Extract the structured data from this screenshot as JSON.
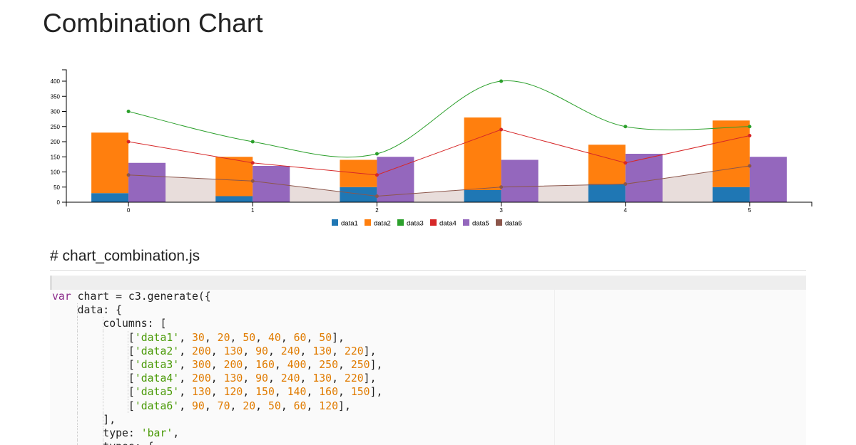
{
  "page": {
    "title": "Combination Chart",
    "source_heading": "# chart_combination.js"
  },
  "colors": {
    "data1": "#1f77b4",
    "data2": "#ff7f0e",
    "data3": "#2ca02c",
    "data4": "#d62728",
    "data5": "#9467bd",
    "data6": "#8c564b"
  },
  "chart_data": {
    "type": "bar",
    "x": [
      0,
      1,
      2,
      3,
      4,
      5
    ],
    "ylim": [
      0,
      420
    ],
    "yticks": [
      0,
      50,
      100,
      150,
      200,
      250,
      300,
      350,
      400
    ],
    "grid": false,
    "legend_position": "bottom-center",
    "series": [
      {
        "name": "data1",
        "values": [
          30,
          20,
          50,
          40,
          60,
          50
        ],
        "render": "bar",
        "stack": "a",
        "color": "#1f77b4"
      },
      {
        "name": "data2",
        "values": [
          200,
          130,
          90,
          240,
          130,
          220
        ],
        "render": "bar",
        "stack": "a",
        "color": "#ff7f0e"
      },
      {
        "name": "data3",
        "values": [
          300,
          200,
          160,
          400,
          250,
          250
        ],
        "render": "spline",
        "color": "#2ca02c"
      },
      {
        "name": "data4",
        "values": [
          200,
          130,
          90,
          240,
          130,
          220
        ],
        "render": "line",
        "color": "#d62728"
      },
      {
        "name": "data5",
        "values": [
          130,
          120,
          150,
          140,
          160,
          150
        ],
        "render": "bar",
        "color": "#9467bd"
      },
      {
        "name": "data6",
        "values": [
          90,
          70,
          20,
          50,
          60,
          120
        ],
        "render": "area",
        "color": "#8c564b"
      }
    ]
  },
  "code": {
    "lines": [
      {
        "indent": 0,
        "tokens": [
          [
            "kw",
            "var"
          ],
          [
            "plain",
            " chart = c3.generate({"
          ]
        ]
      },
      {
        "indent": 1,
        "tokens": [
          [
            "plain",
            "data: {"
          ]
        ]
      },
      {
        "indent": 2,
        "tokens": [
          [
            "plain",
            "columns: ["
          ]
        ]
      },
      {
        "indent": 3,
        "tokens": [
          [
            "plain",
            "["
          ],
          [
            "str",
            "'data1'"
          ],
          [
            "plain",
            ", "
          ],
          [
            "num",
            "30"
          ],
          [
            "plain",
            ", "
          ],
          [
            "num",
            "20"
          ],
          [
            "plain",
            ", "
          ],
          [
            "num",
            "50"
          ],
          [
            "plain",
            ", "
          ],
          [
            "num",
            "40"
          ],
          [
            "plain",
            ", "
          ],
          [
            "num",
            "60"
          ],
          [
            "plain",
            ", "
          ],
          [
            "num",
            "50"
          ],
          [
            "plain",
            "],"
          ]
        ]
      },
      {
        "indent": 3,
        "tokens": [
          [
            "plain",
            "["
          ],
          [
            "str",
            "'data2'"
          ],
          [
            "plain",
            ", "
          ],
          [
            "num",
            "200"
          ],
          [
            "plain",
            ", "
          ],
          [
            "num",
            "130"
          ],
          [
            "plain",
            ", "
          ],
          [
            "num",
            "90"
          ],
          [
            "plain",
            ", "
          ],
          [
            "num",
            "240"
          ],
          [
            "plain",
            ", "
          ],
          [
            "num",
            "130"
          ],
          [
            "plain",
            ", "
          ],
          [
            "num",
            "220"
          ],
          [
            "plain",
            "],"
          ]
        ]
      },
      {
        "indent": 3,
        "tokens": [
          [
            "plain",
            "["
          ],
          [
            "str",
            "'data3'"
          ],
          [
            "plain",
            ", "
          ],
          [
            "num",
            "300"
          ],
          [
            "plain",
            ", "
          ],
          [
            "num",
            "200"
          ],
          [
            "plain",
            ", "
          ],
          [
            "num",
            "160"
          ],
          [
            "plain",
            ", "
          ],
          [
            "num",
            "400"
          ],
          [
            "plain",
            ", "
          ],
          [
            "num",
            "250"
          ],
          [
            "plain",
            ", "
          ],
          [
            "num",
            "250"
          ],
          [
            "plain",
            "],"
          ]
        ]
      },
      {
        "indent": 3,
        "tokens": [
          [
            "plain",
            "["
          ],
          [
            "str",
            "'data4'"
          ],
          [
            "plain",
            ", "
          ],
          [
            "num",
            "200"
          ],
          [
            "plain",
            ", "
          ],
          [
            "num",
            "130"
          ],
          [
            "plain",
            ", "
          ],
          [
            "num",
            "90"
          ],
          [
            "plain",
            ", "
          ],
          [
            "num",
            "240"
          ],
          [
            "plain",
            ", "
          ],
          [
            "num",
            "130"
          ],
          [
            "plain",
            ", "
          ],
          [
            "num",
            "220"
          ],
          [
            "plain",
            "],"
          ]
        ]
      },
      {
        "indent": 3,
        "tokens": [
          [
            "plain",
            "["
          ],
          [
            "str",
            "'data5'"
          ],
          [
            "plain",
            ", "
          ],
          [
            "num",
            "130"
          ],
          [
            "plain",
            ", "
          ],
          [
            "num",
            "120"
          ],
          [
            "plain",
            ", "
          ],
          [
            "num",
            "150"
          ],
          [
            "plain",
            ", "
          ],
          [
            "num",
            "140"
          ],
          [
            "plain",
            ", "
          ],
          [
            "num",
            "160"
          ],
          [
            "plain",
            ", "
          ],
          [
            "num",
            "150"
          ],
          [
            "plain",
            "],"
          ]
        ]
      },
      {
        "indent": 3,
        "tokens": [
          [
            "plain",
            "["
          ],
          [
            "str",
            "'data6'"
          ],
          [
            "plain",
            ", "
          ],
          [
            "num",
            "90"
          ],
          [
            "plain",
            ", "
          ],
          [
            "num",
            "70"
          ],
          [
            "plain",
            ", "
          ],
          [
            "num",
            "20"
          ],
          [
            "plain",
            ", "
          ],
          [
            "num",
            "50"
          ],
          [
            "plain",
            ", "
          ],
          [
            "num",
            "60"
          ],
          [
            "plain",
            ", "
          ],
          [
            "num",
            "120"
          ],
          [
            "plain",
            "],"
          ]
        ]
      },
      {
        "indent": 2,
        "tokens": [
          [
            "plain",
            "],"
          ]
        ]
      },
      {
        "indent": 2,
        "tokens": [
          [
            "plain",
            "type: "
          ],
          [
            "str",
            "'bar'"
          ],
          [
            "plain",
            ","
          ]
        ]
      },
      {
        "indent": 2,
        "tokens": [
          [
            "plain",
            "types: {"
          ]
        ]
      }
    ]
  }
}
